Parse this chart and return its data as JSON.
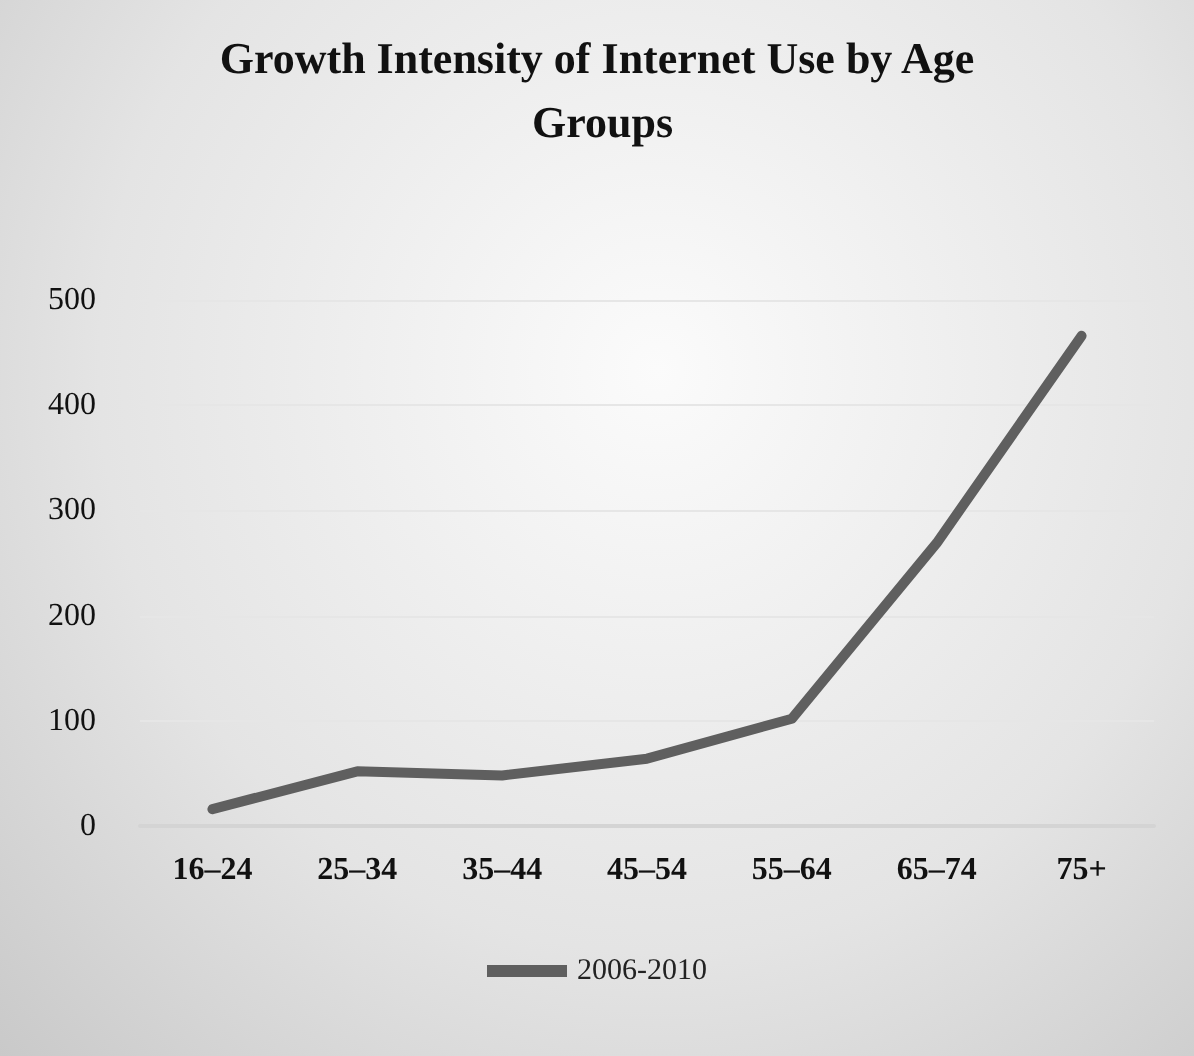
{
  "chart_data": {
    "type": "line",
    "title": "Growth Intensity of Internet Use by Age Groups",
    "categories": [
      "16–24",
      "25–34",
      "35–44",
      "45–54",
      "55–64",
      "65–74",
      "75+"
    ],
    "series": [
      {
        "name": "2006-2010",
        "color": "#5f5f5f",
        "values": [
          16,
          52,
          48,
          64,
          102,
          269,
          466
        ]
      }
    ],
    "ylim": [
      0,
      500
    ],
    "yticks": [
      0,
      100,
      200,
      300,
      400,
      500
    ],
    "grid": "y",
    "legend": "bottom",
    "marker": "none",
    "line_style": "solid"
  }
}
